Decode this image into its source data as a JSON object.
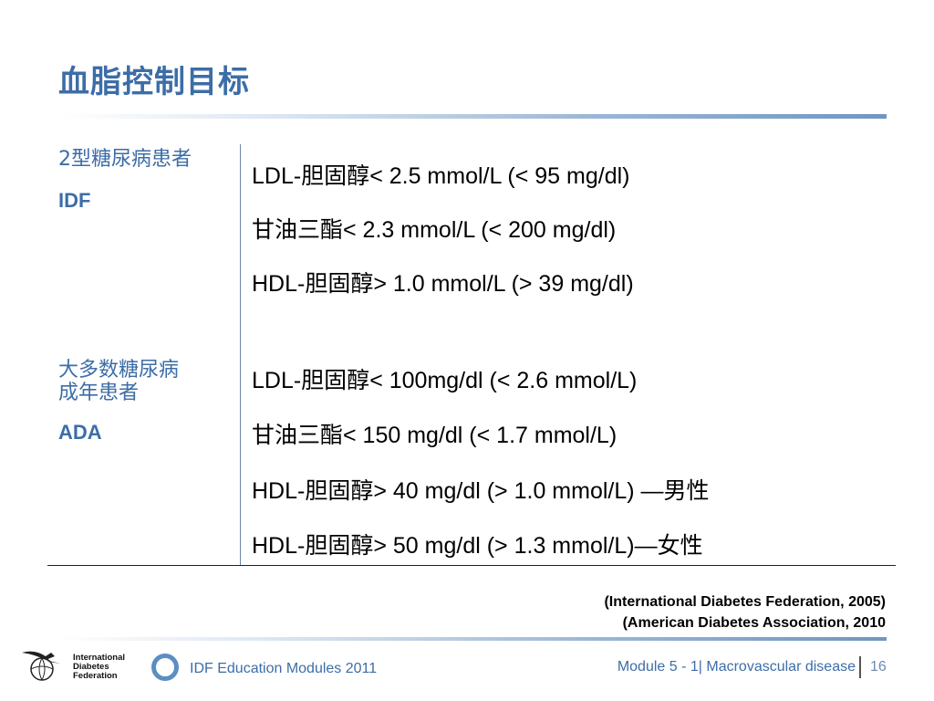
{
  "slide": {
    "title": "血脂控制目标"
  },
  "groups": [
    {
      "label_lines": [
        "2型糖尿病患者"
      ],
      "org": "IDF",
      "rows": [
        {
          "name": "LDL-胆固醇",
          "value": "< 2.5 mmol/L (< 95 mg/dl)"
        },
        {
          "name": "甘油三酯",
          "value": "< 2.3 mmol/L (< 200 mg/dl)"
        },
        {
          "name": "HDL-胆固醇",
          "value": "> 1.0 mmol/L (> 39 mg/dl)"
        }
      ]
    },
    {
      "label_lines": [
        "大多数糖尿病",
        "成年患者"
      ],
      "org": "ADA",
      "rows": [
        {
          "name": "LDL-胆固醇",
          "value": "< 100mg/dl (< 2.6 mmol/L)"
        },
        {
          "name": "甘油三酯",
          "value": "< 150 mg/dl (< 1.7 mmol/L)"
        },
        {
          "name": "HDL-胆固醇",
          "value": "> 40 mg/dl (> 1.0 mmol/L) —",
          "suffix": "男性"
        },
        {
          "name": "HDL-胆固醇",
          "value": "> 50 mg/dl (> 1.3 mmol/L)—",
          "suffix": "女性"
        }
      ]
    }
  ],
  "references": [
    "(International Diabetes Federation, 2005)",
    "(American Diabetes Association, 2010"
  ],
  "footer": {
    "org_logo_lines": [
      "International",
      "Diabetes",
      "Federation"
    ],
    "modules_label": "IDF Education Modules 2011",
    "module_info": "Module 5 - 1| Macrovascular disease",
    "page_number": "16"
  },
  "colors": {
    "accent": "#3d6da7",
    "rule_end": "#6f96c2",
    "ring": "#5b8ec3"
  },
  "icons": {
    "logo": "idf-bird-globe-icon",
    "ring": "ring-icon"
  }
}
